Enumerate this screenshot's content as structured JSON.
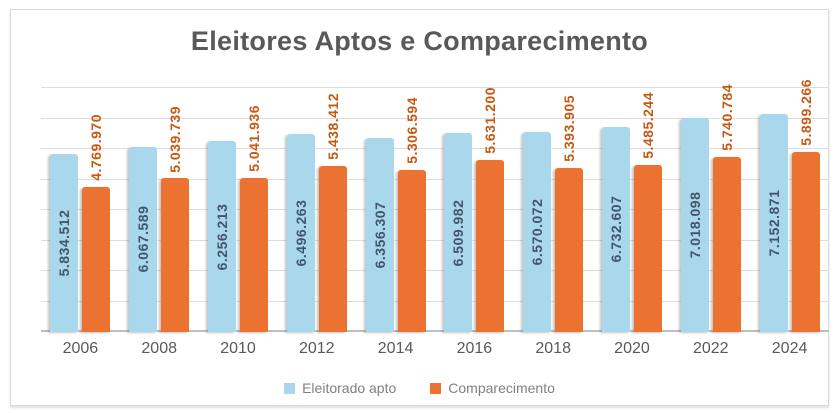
{
  "chart_data": {
    "type": "bar",
    "title": "Eleitores Aptos e Comparecimento",
    "categories": [
      "2006",
      "2008",
      "2010",
      "2012",
      "2014",
      "2016",
      "2018",
      "2020",
      "2022",
      "2024"
    ],
    "series": [
      {
        "name": "Eleitorado apto",
        "color": "#A9D8ED",
        "label_color": "#44546A",
        "values": [
          5834512,
          6067589,
          6256213,
          6496263,
          6356307,
          6509982,
          6570072,
          6732607,
          7018098,
          7152871
        ],
        "labels": [
          "5.834.512",
          "6.067.589",
          "6.256.213",
          "6.496.263",
          "6.356.307",
          "6.509.982",
          "6.570.072",
          "6.732.607",
          "7.018.098",
          "7.152.871"
        ]
      },
      {
        "name": "Comparecimento",
        "color": "#EC7231",
        "label_color": "#C65911",
        "values": [
          4769970,
          5039739,
          5041936,
          5438412,
          5306594,
          5631200,
          5393905,
          5485244,
          5740784,
          5899266
        ],
        "labels": [
          "4.769.970",
          "5.039.739",
          "5.041.936",
          "5.438.412",
          "5.306.594",
          "5.631.200",
          "5.393.905",
          "5.485.244",
          "5.740.784",
          "5.899.266"
        ]
      }
    ],
    "xlabel": "",
    "ylabel": "",
    "ylim": [
      0,
      8000000
    ],
    "gridline_interval": 1000000,
    "grid": true,
    "legend_position": "bottom"
  },
  "styles": {
    "title_color": "#595959",
    "axis_label_color": "#595959",
    "legend_text_color": "#808080",
    "gridline_color": "#DDDDDD",
    "axis_line_color": "#BFBFBF",
    "card_border_color": "#D9D9D9",
    "background": "#FFFFFF"
  }
}
